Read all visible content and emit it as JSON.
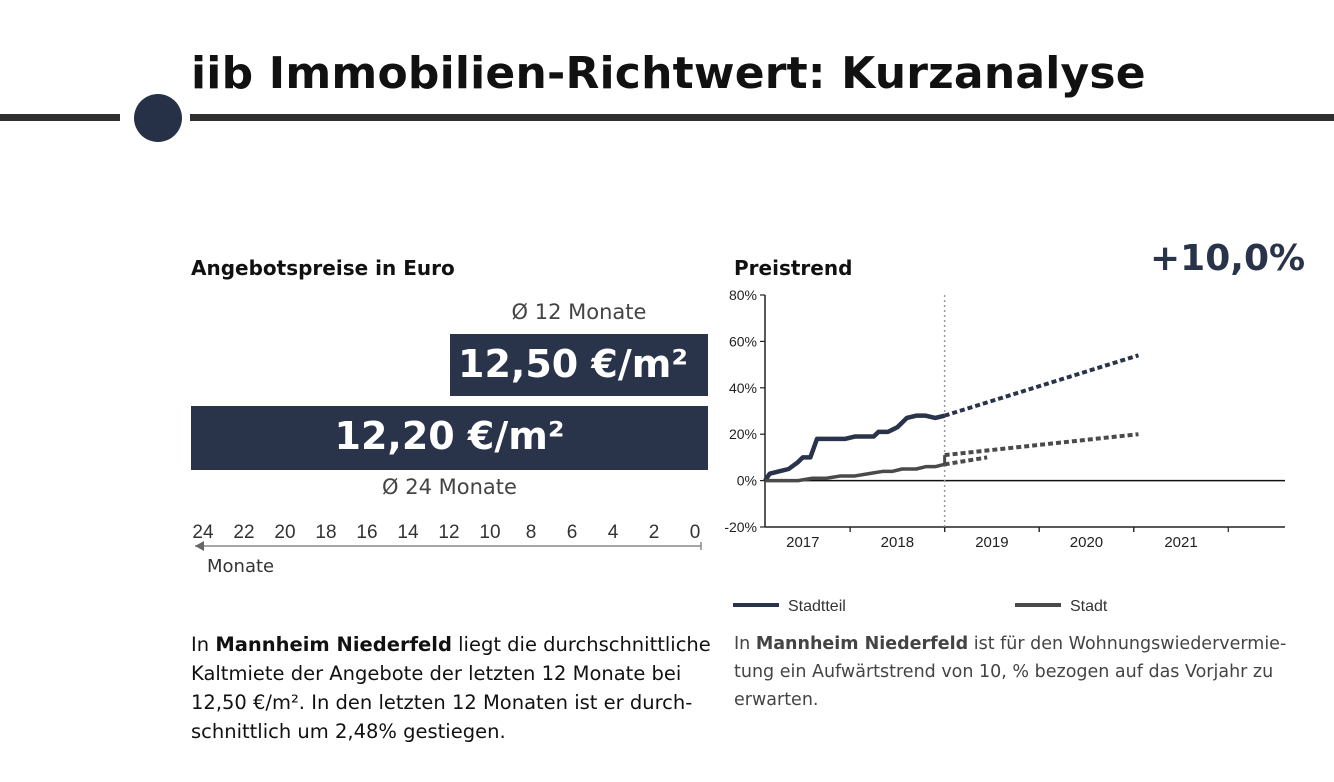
{
  "header": {
    "title": "iib Immobilien-Richtwert: Kurzanalyse"
  },
  "offer": {
    "heading": "Angebotspreise in Euro",
    "avg12_label": "Ø 12 Monate",
    "avg12_value": "12,50 €/m²",
    "avg24_label": "Ø 24 Monate",
    "avg24_value": "12,20 €/m²",
    "axis_ticks": [
      "24",
      "22",
      "20",
      "18",
      "16",
      "14",
      "12",
      "10",
      "8",
      "6",
      "4",
      "2",
      "0"
    ],
    "axis_label": "Monate",
    "text_parts": {
      "pre": "In ",
      "bold": "Mannheim Niederfeld",
      "post": " liegt die durchschnittliche Kaltmiete der Angebote der letzten 12 Monate bei 12,50 €/m². In den letzten 12 Monaten ist er durch-schnittlich um 2,48% gestiegen."
    }
  },
  "trend": {
    "heading": "Preistrend",
    "change": "+10,0%",
    "text_parts": {
      "pre": "In ",
      "bold": "Mannheim Niederfeld",
      "post": " ist für den Wohnungswiedervermie-tung ein Aufwärtstrend von 10, % bezogen auf das Vorjahr zu erwarten."
    }
  },
  "colors": {
    "navy": "#29334a",
    "grey": "#4a4a4a"
  },
  "chart_data": [
    {
      "type": "bar",
      "title": "Angebotspreise in Euro",
      "categories": [
        "Ø 12 Monate",
        "Ø 24 Monate"
      ],
      "values": [
        12.5,
        12.2
      ],
      "unit": "€/m²",
      "xlabel": "Monate"
    },
    {
      "type": "line",
      "title": "Preistrend",
      "ylim": [
        -20,
        80
      ],
      "y_ticks": [
        "80%",
        "60%",
        "40%",
        "20%",
        "0%",
        "-20%"
      ],
      "y_tick_values": [
        80,
        60,
        40,
        20,
        0,
        -20
      ],
      "x_ticks": [
        "2017",
        "2018",
        "2019",
        "2020",
        "2021"
      ],
      "x_range": [
        2016.6,
        2022.1
      ],
      "forecast_start": 2018.5,
      "grid": false,
      "legend_position": "bottom",
      "series": [
        {
          "name": "Stadtteil",
          "color": "#29334a",
          "x": [
            2016.6,
            2016.65,
            2016.75,
            2016.85,
            2016.95,
            2017.0,
            2017.08,
            2017.15,
            2017.25,
            2017.4,
            2017.45,
            2017.55,
            2017.65,
            2017.75,
            2017.8,
            2017.9,
            2017.95,
            2018.0,
            2018.1,
            2018.2,
            2018.3,
            2018.4,
            2018.5
          ],
          "values": [
            0,
            3,
            4,
            5,
            8,
            10,
            10,
            18,
            18,
            18,
            18,
            19,
            19,
            19,
            21,
            21,
            22,
            23,
            27,
            28,
            28,
            27,
            28
          ],
          "forecast_x": [
            2018.5,
            2020.55
          ],
          "forecast_values": [
            28,
            54
          ]
        },
        {
          "name": "Stadt",
          "color": "#4a4a4a",
          "x": [
            2016.6,
            2016.8,
            2016.95,
            2017.1,
            2017.25,
            2017.4,
            2017.55,
            2017.7,
            2017.85,
            2017.95,
            2018.05,
            2018.2,
            2018.3,
            2018.4,
            2018.5
          ],
          "values": [
            0,
            0,
            0,
            1,
            1,
            2,
            2,
            3,
            4,
            4,
            5,
            5,
            6,
            6,
            7
          ],
          "forecast_x": [
            2018.5,
            2020.55
          ],
          "forecast_values": [
            11,
            20
          ],
          "forecast_band_x": [
            2018.5,
            2018.95
          ],
          "forecast_band_values": [
            7,
            10
          ]
        }
      ]
    }
  ]
}
